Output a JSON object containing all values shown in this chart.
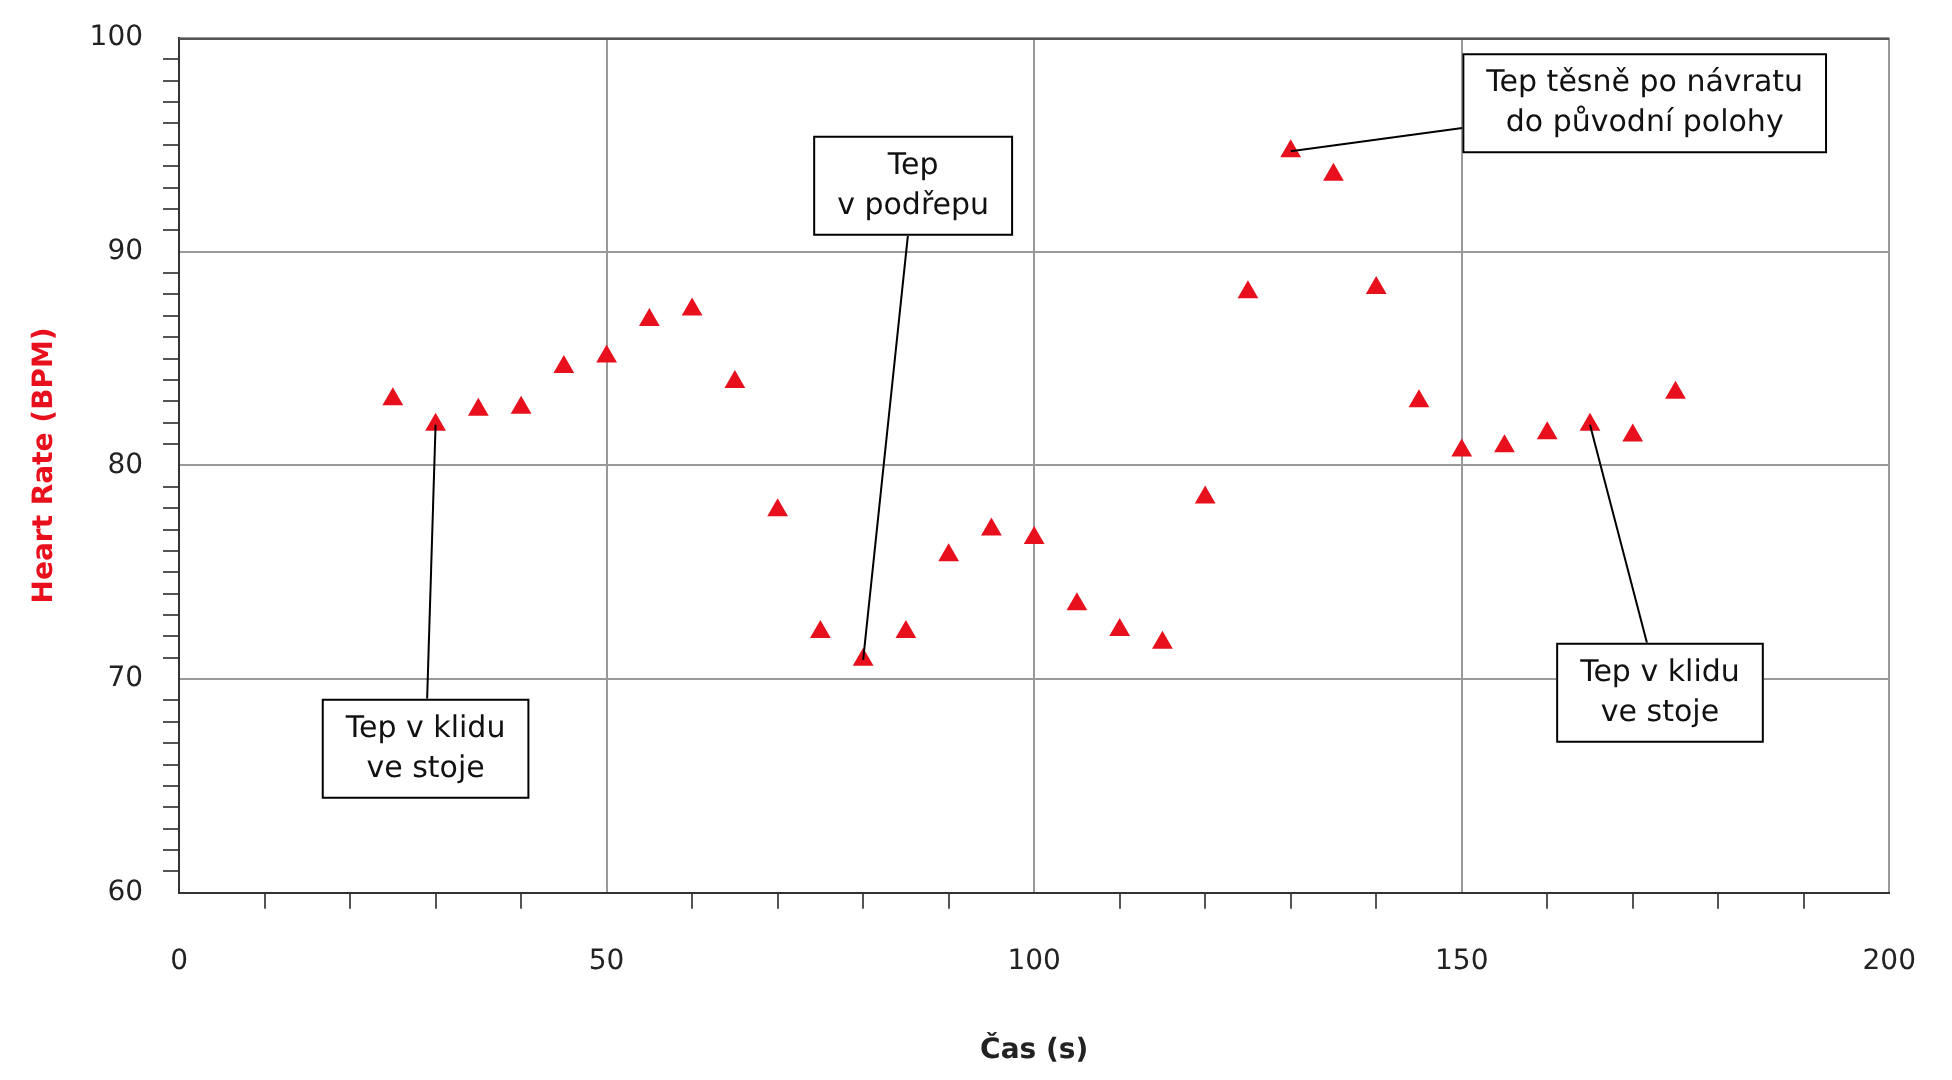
{
  "chart_data": {
    "type": "scatter",
    "xlabel": "Čas (s)",
    "ylabel": "Heart Rate (BPM)",
    "x": [
      25,
      30,
      35,
      40,
      45,
      50,
      55,
      60,
      65,
      70,
      75,
      80,
      85,
      90,
      95,
      100,
      105,
      110,
      115,
      120,
      125,
      130,
      135,
      140,
      145,
      150,
      155,
      160,
      165,
      170,
      175
    ],
    "series": [
      {
        "color": "#e8101c",
        "values": [
          83.1,
          81.9,
          82.6,
          82.7,
          84.6,
          85.1,
          86.8,
          87.3,
          83.9,
          77.9,
          72.2,
          70.9,
          72.2,
          75.8,
          77.0,
          76.6,
          73.5,
          72.3,
          71.7,
          78.5,
          88.1,
          94.7,
          93.6,
          88.3,
          83.0,
          80.7,
          80.9,
          81.5,
          81.9,
          81.4,
          83.4
        ]
      }
    ],
    "xlim": [
      0,
      200
    ],
    "xticks": [
      0,
      {
        "value": 10,
        "label": null
      },
      {
        "value": 20,
        "label": null
      },
      {
        "value": 30,
        "label": null
      },
      {
        "value": 40,
        "label": null
      },
      50,
      {
        "value": 60,
        "label": null
      },
      {
        "value": 70,
        "label": null
      },
      {
        "value": 80,
        "label": null
      },
      {
        "value": 90,
        "label": null
      },
      100,
      {
        "value": 110,
        "label": null
      },
      {
        "value": 120,
        "label": null
      },
      {
        "value": 130,
        "label": null
      },
      {
        "value": 140,
        "label": null
      },
      150,
      {
        "value": 160,
        "label": null
      },
      {
        "value": 170,
        "label": null
      },
      {
        "value": 180,
        "label": null
      },
      {
        "value": 190,
        "label": null
      },
      200
    ],
    "ylim": [
      60,
      100
    ],
    "yticks": [
      60,
      {
        "value": 61,
        "label": null
      },
      {
        "value": 62,
        "label": null
      },
      {
        "value": 63,
        "label": null
      },
      {
        "value": 64,
        "label": null
      },
      {
        "value": 65,
        "label": null
      },
      {
        "value": 66,
        "label": null
      },
      {
        "value": 67,
        "label": null
      },
      {
        "value": 68,
        "label": null
      },
      {
        "value": 69,
        "label": null
      },
      70,
      {
        "value": 71,
        "label": null
      },
      {
        "value": 72,
        "label": null
      },
      {
        "value": 73,
        "label": null
      },
      {
        "value": 74,
        "label": null
      },
      {
        "value": 75,
        "label": null
      },
      {
        "value": 76,
        "label": null
      },
      {
        "value": 77,
        "label": null
      },
      {
        "value": 78,
        "label": null
      },
      {
        "value": 79,
        "label": null
      },
      80,
      {
        "value": 81,
        "label": null
      },
      {
        "value": 82,
        "label": null
      },
      {
        "value": 83,
        "label": null
      },
      {
        "value": 84,
        "label": null
      },
      {
        "value": 85,
        "label": null
      },
      {
        "value": 86,
        "label": null
      },
      {
        "value": 87,
        "label": null
      },
      {
        "value": 88,
        "label": null
      },
      {
        "value": 89,
        "label": null
      },
      90,
      {
        "value": 91,
        "label": null
      },
      {
        "value": 92,
        "label": null
      },
      {
        "value": 93,
        "label": null
      },
      {
        "value": 94,
        "label": null
      },
      {
        "value": 95,
        "label": null
      },
      {
        "value": 96,
        "label": null
      },
      {
        "value": 97,
        "label": null
      },
      {
        "value": 98,
        "label": null
      },
      {
        "value": 99,
        "label": null
      },
      100
    ],
    "grid": true,
    "marker": "triangle",
    "legend": false,
    "annotations": [
      {
        "text": "Tep v klidu\nve stoje",
        "x": 30,
        "y": 81.9
      },
      {
        "text": "Tep\nv podřepu",
        "x": 80,
        "y": 70.9
      },
      {
        "text": "Tep těsně po návratu\ndo původní polohy",
        "x": 130,
        "y": 94.7
      },
      {
        "text": "Tep v klidu\nve stoje",
        "x": 165,
        "y": 81.9
      }
    ]
  }
}
